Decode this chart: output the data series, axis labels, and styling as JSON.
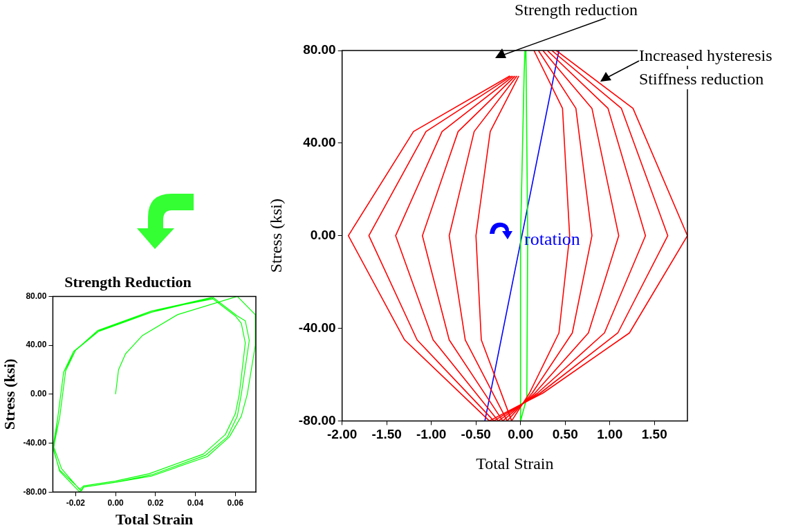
{
  "chart_data": [
    {
      "type": "line",
      "title": "Strength Reduction",
      "xlabel": "Total Strain",
      "ylabel": "Stress (ksi)",
      "xlim": [
        -0.0314,
        0.0703
      ],
      "ylim": [
        -80,
        80
      ],
      "xticks": [
        {
          "value": -0.02,
          "label": "-0.02"
        },
        {
          "value": 0,
          "label": "0.00"
        },
        {
          "value": 0.02,
          "label": "0.02"
        },
        {
          "value": 0.04,
          "label": "0.04"
        },
        {
          "value": 0.06,
          "label": "0.06"
        }
      ],
      "yticks": [
        {
          "value": -80,
          "label": "-80.00"
        },
        {
          "value": -40,
          "label": "-40.00"
        },
        {
          "value": 0,
          "label": "0.00"
        },
        {
          "value": 40,
          "label": "40.00"
        },
        {
          "value": 80,
          "label": "80.00"
        }
      ],
      "grid": false,
      "legend": false,
      "marker": "none",
      "line_style": "solid",
      "series": [
        {
          "color": "#00ff00",
          "x": [
            0,
            0.0015,
            0.005,
            0.0135,
            0.031,
            0.061,
            0.07,
            0.07,
            0.066,
            0.063,
            0.057,
            0.046,
            0.018,
            0,
            -0.016,
            -0.018,
            -0.028,
            -0.031,
            -0.029,
            -0.026,
            -0.021,
            -0.009,
            0.018,
            0.049,
            0.061,
            0.065,
            0.067,
            0.063,
            0.061,
            0.056,
            0.045,
            0.018,
            0,
            -0.016,
            -0.017,
            -0.028,
            -0.0314,
            -0.029,
            -0.026,
            -0.02,
            -0.008,
            0.018,
            0.048,
            0.06,
            0.063,
            0.065,
            0.062,
            0.06,
            0.055,
            0.044,
            0.017,
            0,
            -0.016,
            -0.018,
            -0.027,
            -0.031,
            -0.028,
            -0.025,
            -0.02,
            -0.009,
            0.018,
            0.049
          ],
          "values": [
            0,
            20,
            33,
            48,
            65,
            80,
            65,
            40,
            0,
            -18,
            -35,
            -51,
            -67,
            -72,
            -76,
            -80,
            -63,
            -45,
            -20,
            18,
            35,
            51,
            67,
            79,
            64,
            60,
            44,
            0,
            -18,
            -35,
            -50,
            -66,
            -72,
            -76,
            -79,
            -62,
            -44,
            -20,
            18,
            36,
            52,
            68,
            79,
            64,
            58,
            42,
            0,
            -16,
            -33,
            -49,
            -65,
            -71,
            -75,
            -78,
            -61,
            -43,
            -19,
            19,
            36,
            52,
            68,
            78
          ]
        }
      ]
    },
    {
      "type": "line",
      "xlabel": "Total Strain",
      "ylabel": "Stress (ksi)",
      "xlim": [
        -2,
        1.87
      ],
      "ylim": [
        -80,
        80
      ],
      "xticks": [
        {
          "value": -2,
          "label": "-2.00"
        },
        {
          "value": -1.5,
          "label": "-1.50"
        },
        {
          "value": -1,
          "label": "-1.00"
        },
        {
          "value": -0.5,
          "label": "-0.50"
        },
        {
          "value": 0,
          "label": "0.00"
        },
        {
          "value": 0.5,
          "label": "0.50"
        },
        {
          "value": 1,
          "label": "1.00"
        },
        {
          "value": 1.5,
          "label": "1.50"
        }
      ],
      "yticks": [
        {
          "value": -80,
          "label": "-80.00"
        },
        {
          "value": -40,
          "label": "-40.00"
        },
        {
          "value": 0,
          "label": "0.00"
        },
        {
          "value": 40,
          "label": "40.00"
        },
        {
          "value": 80,
          "label": "80.00"
        }
      ],
      "grid": false,
      "legend": false,
      "marker": "none",
      "line_style": "solid",
      "annotations": [
        "Strength reduction",
        "Increased hysteresis",
        "Stiffness reduction",
        "rotation"
      ],
      "series": [
        {
          "color": "#ff0000",
          "x": [
            0.15,
            0.47,
            0.55,
            0.43,
            0.1,
            -0.1,
            -0.44,
            -0.5,
            -0.34,
            -0.02
          ],
          "values": [
            80,
            55,
            0,
            -42,
            -68,
            -80,
            -45,
            0,
            45,
            69
          ]
        },
        {
          "color": "#ff0000",
          "x": [
            0.2,
            0.62,
            0.8,
            0.58,
            0.13,
            -0.15,
            -0.62,
            -0.8,
            -0.52,
            -0.04
          ],
          "values": [
            80,
            55,
            0,
            -42,
            -68,
            -80,
            -45,
            0,
            45,
            69
          ]
        },
        {
          "color": "#ff0000",
          "x": [
            0.25,
            0.8,
            1.1,
            0.76,
            0.16,
            -0.2,
            -0.8,
            -1.1,
            -0.7,
            -0.06
          ],
          "values": [
            80,
            55,
            0,
            -42,
            -68,
            -80,
            -45,
            0,
            45,
            69
          ]
        },
        {
          "color": "#ff0000",
          "x": [
            0.3,
            0.98,
            1.4,
            0.94,
            0.19,
            -0.25,
            -0.98,
            -1.4,
            -0.88,
            -0.08
          ],
          "values": [
            80,
            55,
            0,
            -42,
            -68,
            -80,
            -45,
            0,
            45,
            69
          ]
        },
        {
          "color": "#ff0000",
          "x": [
            0.35,
            1.13,
            1.65,
            1.09,
            0.22,
            -0.3,
            -1.16,
            -1.7,
            -1.06,
            -0.1
          ],
          "values": [
            80,
            55,
            0,
            -42,
            -68,
            -80,
            -45,
            0,
            45,
            69
          ]
        },
        {
          "color": "#ff0000",
          "x": [
            0.4,
            1.26,
            1.87,
            1.22,
            0.25,
            -0.35,
            -1.3,
            -1.93,
            -1.2,
            -0.12
          ],
          "values": [
            80,
            55,
            0,
            -42,
            -68,
            -80,
            -45,
            0,
            45,
            69
          ]
        },
        {
          "color": "#00ff00",
          "x": [
            0.06,
            0.08,
            0.07,
            0,
            0,
            0.04,
            0.05
          ],
          "values": [
            80,
            0,
            -70,
            -80,
            0,
            70,
            80
          ]
        },
        {
          "color": "#0000ff",
          "x": [
            -0.4,
            0.43
          ],
          "values": [
            -80,
            80
          ]
        }
      ]
    }
  ]
}
